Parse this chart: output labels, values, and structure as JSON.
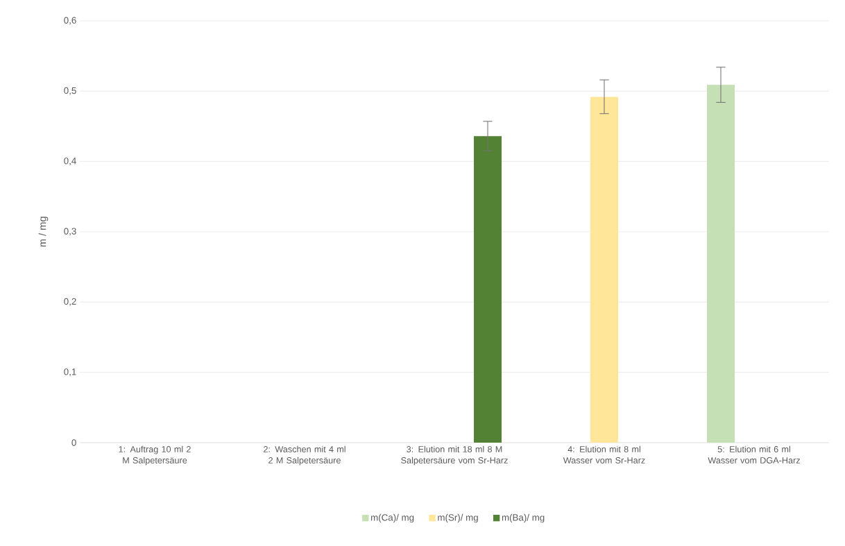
{
  "chart_data": {
    "type": "bar",
    "ylabel": "m / mg",
    "categories": [
      "1: Auftrag  10 ml 2 M Salpetersäure",
      "2: Waschen mit 4 ml 2 M Salpetersäure",
      "3: Elution mit 18 ml 8 M Salpetersäure vom Sr-Harz",
      "4: Elution mit 8 ml Wasser vom Sr-Harz",
      "5: Elution mit 6 ml Wasser vom DGA-Harz"
    ],
    "series": [
      {
        "name": "m(Ca)/ mg",
        "color": "#c5e0b4",
        "values": [
          null,
          null,
          null,
          null,
          0.509
        ],
        "errors": [
          null,
          null,
          null,
          null,
          0.025
        ]
      },
      {
        "name": "m(Sr)/ mg",
        "color": "#ffe699",
        "values": [
          null,
          null,
          null,
          0.492,
          null
        ],
        "errors": [
          null,
          null,
          null,
          0.024,
          null
        ]
      },
      {
        "name": "m(Ba)/ mg",
        "color": "#548235",
        "values": [
          null,
          null,
          0.436,
          null,
          null
        ],
        "errors": [
          null,
          null,
          0.021,
          null,
          null
        ]
      }
    ],
    "ylim": [
      0,
      0.6
    ],
    "yticks": [
      0,
      {
        "value": 0.1,
        "label": "0,1"
      },
      {
        "value": 0.2,
        "label": "0,2"
      },
      {
        "value": 0.3,
        "label": "0,3"
      },
      {
        "value": 0.4,
        "label": "0,4"
      },
      {
        "value": 0.5,
        "label": "0,5"
      },
      {
        "value": 0.6,
        "label": "0,6"
      }
    ],
    "grid": "y",
    "legend": "bottom"
  }
}
